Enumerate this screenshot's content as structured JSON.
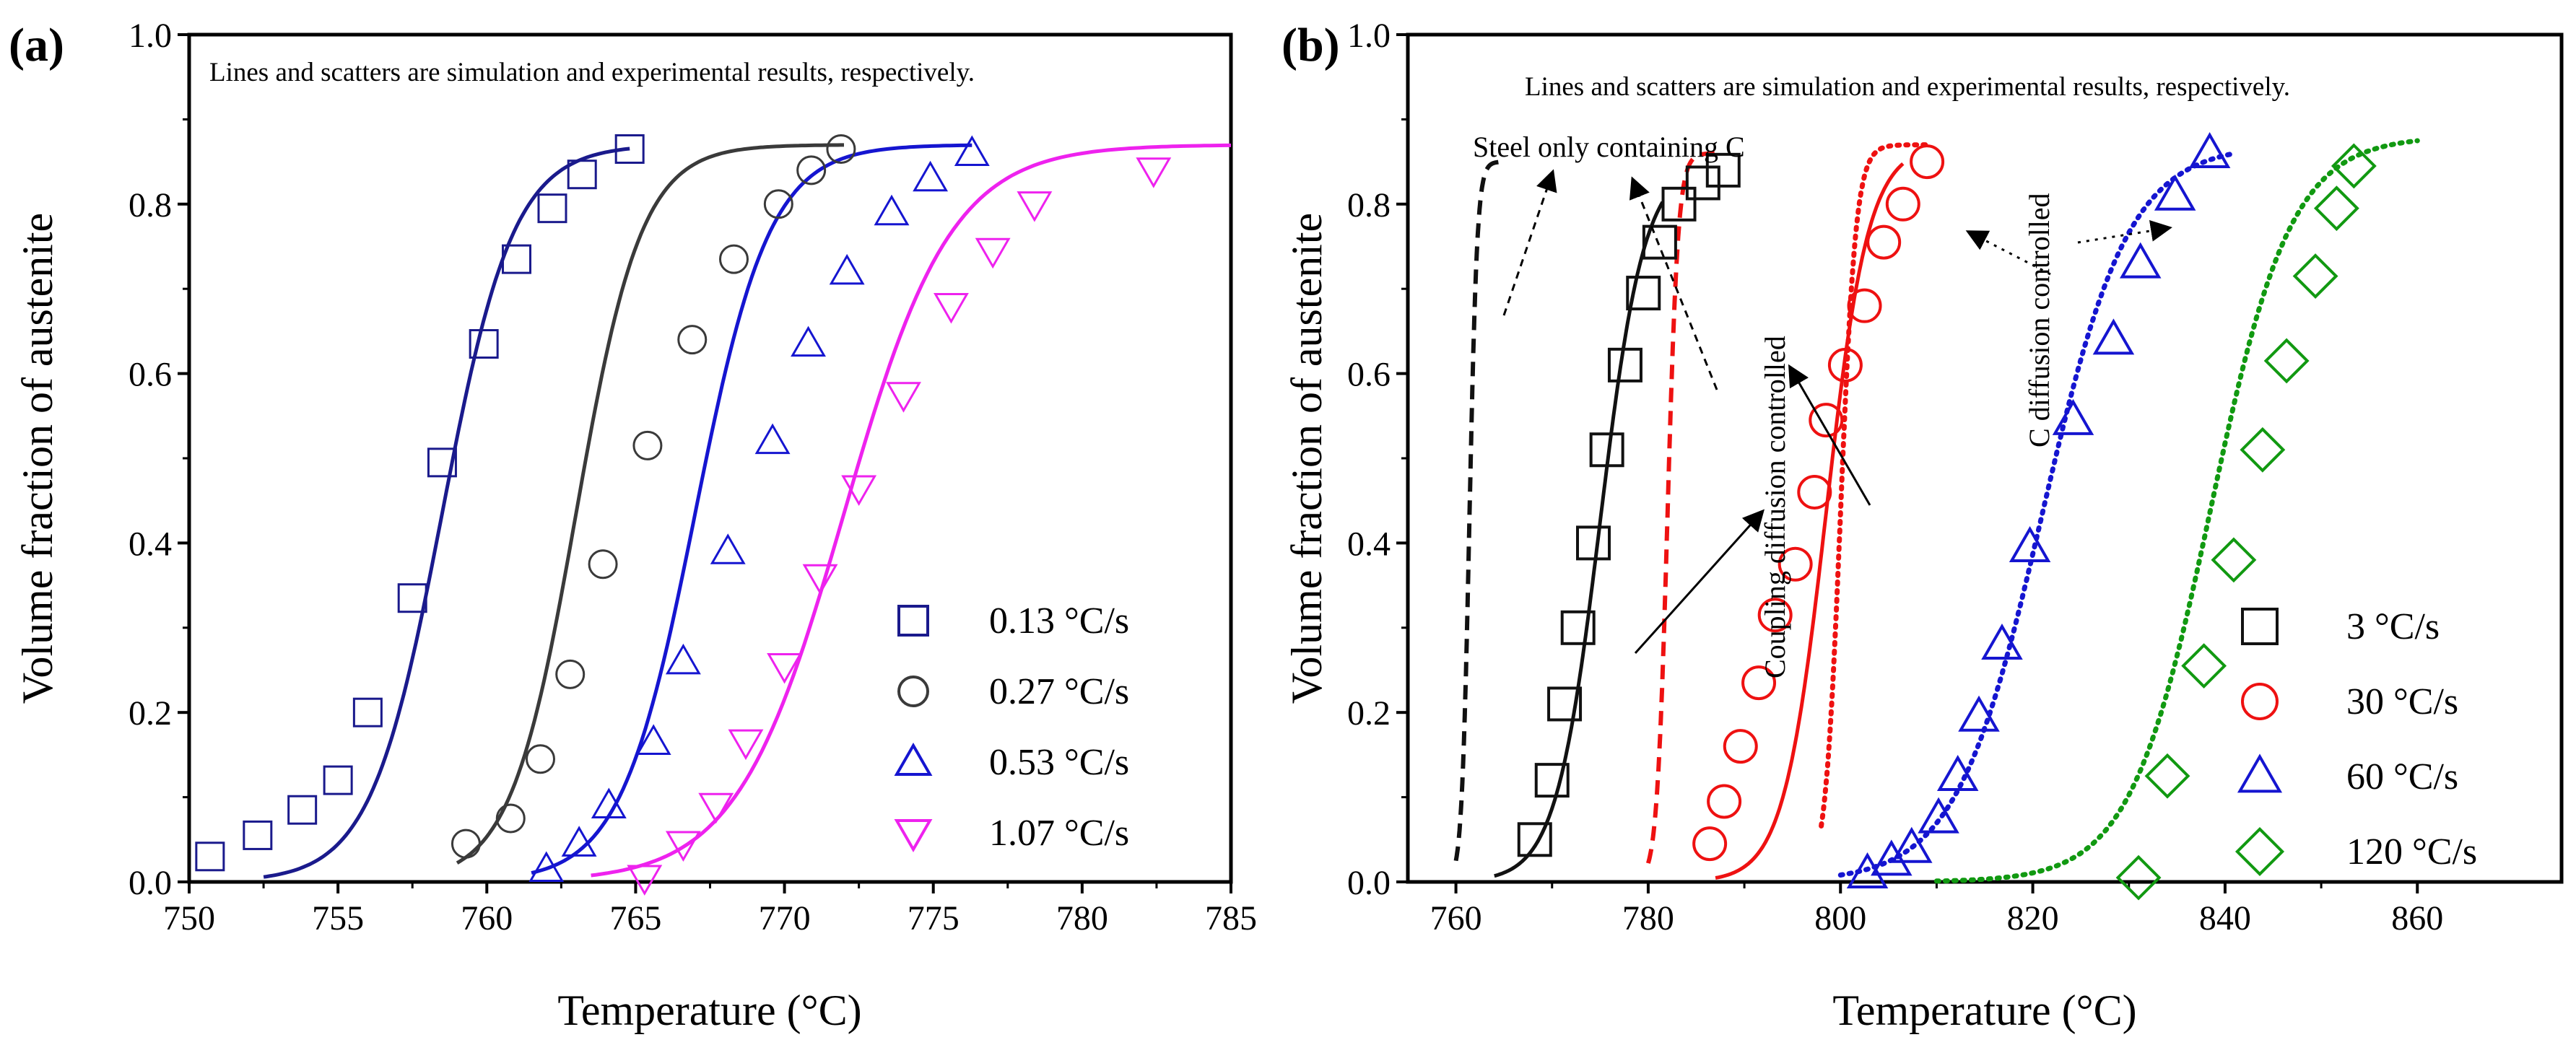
{
  "figure": {
    "panel_labels": [
      "(a)",
      "(b)"
    ]
  },
  "chart_data": [
    {
      "type": "scatter",
      "panel": "(a)",
      "xlabel": "Temperature (°C)",
      "ylabel": "Volume fraction of  austenite",
      "xlim": [
        750,
        785
      ],
      "ylim": [
        0,
        1.0
      ],
      "xticks": [
        750,
        755,
        760,
        765,
        770,
        775,
        780,
        785
      ],
      "yticks": [
        0.0,
        0.2,
        0.4,
        0.6,
        0.8,
        1.0
      ],
      "annotation": "Lines and scatters are simulation and experimental results, respectively.",
      "legend_position": "bottom-right",
      "series": [
        {
          "name": "0.13 °C/s",
          "color": "#1a1a8c",
          "marker": "square",
          "points": [
            [
              750.7,
              0.03
            ],
            [
              752.3,
              0.055
            ],
            [
              753.8,
              0.085
            ],
            [
              755.0,
              0.12
            ],
            [
              756.0,
              0.2
            ],
            [
              757.5,
              0.335
            ],
            [
              758.5,
              0.495
            ],
            [
              759.9,
              0.635
            ],
            [
              761.0,
              0.735
            ],
            [
              762.2,
              0.795
            ],
            [
              763.2,
              0.835
            ],
            [
              764.8,
              0.865
            ]
          ],
          "curve": {
            "midpoint": 758.5,
            "width": 1.2,
            "max": 0.87,
            "start": 752.5,
            "end": 764.8
          }
        },
        {
          "name": "0.27 °C/s",
          "color": "#3a3a3a",
          "marker": "circle",
          "points": [
            [
              759.3,
              0.045
            ],
            [
              760.8,
              0.075
            ],
            [
              761.8,
              0.145
            ],
            [
              762.8,
              0.245
            ],
            [
              763.9,
              0.375
            ],
            [
              765.4,
              0.515
            ],
            [
              766.9,
              0.64
            ],
            [
              768.3,
              0.735
            ],
            [
              769.8,
              0.8
            ],
            [
              770.9,
              0.84
            ],
            [
              771.9,
              0.865
            ]
          ],
          "curve": {
            "midpoint": 763.0,
            "width": 1.1,
            "max": 0.87,
            "start": 759.0,
            "end": 772.0
          }
        },
        {
          "name": "0.53 °C/s",
          "color": "#1515d0",
          "marker": "triangle-up",
          "points": [
            [
              762.0,
              0.015
            ],
            [
              763.1,
              0.045
            ],
            [
              764.1,
              0.09
            ],
            [
              765.6,
              0.165
            ],
            [
              766.6,
              0.26
            ],
            [
              768.1,
              0.39
            ],
            [
              769.6,
              0.52
            ],
            [
              770.8,
              0.635
            ],
            [
              772.1,
              0.72
            ],
            [
              773.6,
              0.79
            ],
            [
              774.9,
              0.83
            ],
            [
              776.3,
              0.86
            ]
          ],
          "curve": {
            "midpoint": 767.0,
            "width": 1.25,
            "max": 0.87,
            "start": 761.5,
            "end": 776.3
          }
        },
        {
          "name": "1.07 °C/s",
          "color": "#ee22ee",
          "marker": "triangle-down",
          "points": [
            [
              765.3,
              0.005
            ],
            [
              766.6,
              0.045
            ],
            [
              767.7,
              0.09
            ],
            [
              768.7,
              0.165
            ],
            [
              770.0,
              0.255
            ],
            [
              771.2,
              0.36
            ],
            [
              772.5,
              0.465
            ],
            [
              774.0,
              0.575
            ],
            [
              775.6,
              0.68
            ],
            [
              777.0,
              0.745
            ],
            [
              778.4,
              0.8
            ],
            [
              782.4,
              0.84
            ]
          ],
          "curve": {
            "midpoint": 772.0,
            "width": 1.8,
            "max": 0.87,
            "start": 763.5,
            "end": 785.0
          }
        }
      ]
    },
    {
      "type": "scatter",
      "panel": "(b)",
      "xlabel": "Temperature (°C)",
      "ylabel": "Volume fraction of austenite",
      "xlim": [
        755,
        875
      ],
      "ylim": [
        0,
        1.0
      ],
      "xticks": [
        760,
        780,
        800,
        820,
        840,
        860
      ],
      "yticks": [
        0.0,
        0.2,
        0.4,
        0.6,
        0.8,
        1.0
      ],
      "annotation": "Lines and scatters are simulation and experimental results, respectively.",
      "text_labels": [
        "Steel  only containing C",
        "Coupling diffusion controlled",
        "C diffusion controlled"
      ],
      "legend_position": "bottom-right",
      "series": [
        {
          "name": "3 °C/s",
          "color": "#111111",
          "marker": "square",
          "points": [
            [
              768.2,
              0.05
            ],
            [
              770.0,
              0.12
            ],
            [
              771.3,
              0.21
            ],
            [
              772.7,
              0.3
            ],
            [
              774.3,
              0.4
            ],
            [
              775.7,
              0.51
            ],
            [
              777.6,
              0.61
            ],
            [
              779.5,
              0.695
            ],
            [
              781.2,
              0.755
            ],
            [
              783.2,
              0.8
            ],
            [
              785.7,
              0.825
            ],
            [
              787.8,
              0.84
            ]
          ],
          "solid_curve": {
            "midpoint": 775.0,
            "width": 2.3,
            "max": 0.85,
            "start": 764.0,
            "end": 781.5
          },
          "dashed_curve": {
            "midpoint": 761.4,
            "width": 0.4,
            "max": 0.85,
            "start": 760.0,
            "end": 765.0
          }
        },
        {
          "name": "30 °C/s",
          "color": "#ee1111",
          "marker": "circle",
          "points": [
            [
              786.4,
              0.045
            ],
            [
              787.9,
              0.095
            ],
            [
              789.6,
              0.16
            ],
            [
              791.5,
              0.235
            ],
            [
              793.2,
              0.315
            ],
            [
              795.3,
              0.375
            ],
            [
              797.3,
              0.46
            ],
            [
              798.5,
              0.545
            ],
            [
              800.5,
              0.61
            ],
            [
              802.5,
              0.68
            ],
            [
              804.5,
              0.755
            ],
            [
              806.5,
              0.8
            ],
            [
              809.0,
              0.85
            ]
          ],
          "solid_curve": {
            "midpoint": 798.5,
            "width": 2.2,
            "max": 0.87,
            "start": 787.0,
            "end": 806.5
          },
          "dashed_curve": {
            "midpoint": 782.0,
            "width": 0.55,
            "max": 0.86,
            "start": 780.0,
            "end": 787.5
          },
          "dotted_curve": {
            "midpoint": 800.0,
            "width": 0.8,
            "max": 0.87,
            "start": 798.0,
            "end": 809.0
          }
        },
        {
          "name": "60 °C/s",
          "color": "#1515d0",
          "marker": "triangle-up",
          "points": [
            [
              802.8,
              0.01
            ],
            [
              805.3,
              0.025
            ],
            [
              807.4,
              0.04
            ],
            [
              810.2,
              0.075
            ],
            [
              812.2,
              0.125
            ],
            [
              814.4,
              0.195
            ],
            [
              816.8,
              0.28
            ],
            [
              819.7,
              0.395
            ],
            [
              824.2,
              0.545
            ],
            [
              828.4,
              0.64
            ],
            [
              831.2,
              0.73
            ],
            [
              834.8,
              0.81
            ],
            [
              838.4,
              0.86
            ]
          ],
          "dotted_curve": {
            "midpoint": 821.0,
            "width": 4.5,
            "max": 0.87,
            "start": 800.0,
            "end": 841.0
          }
        },
        {
          "name": "120 °C/s",
          "color": "#119911",
          "marker": "diamond",
          "points": [
            [
              831.0,
              0.005
            ],
            [
              834.0,
              0.125
            ],
            [
              837.8,
              0.255
            ],
            [
              840.9,
              0.38
            ],
            [
              843.9,
              0.51
            ],
            [
              846.4,
              0.615
            ],
            [
              849.4,
              0.715
            ],
            [
              851.6,
              0.795
            ],
            [
              853.4,
              0.845
            ]
          ],
          "dotted_curve": {
            "midpoint": 838.5,
            "width": 4.2,
            "max": 0.88,
            "start": 810.0,
            "end": 860.0
          }
        }
      ]
    }
  ]
}
